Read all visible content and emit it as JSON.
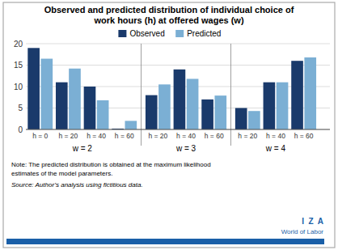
{
  "chart_data": {
    "type": "bar",
    "title": "Observed and predicted distribution of individual choice of\nwork hours (h) at offered wages (w)",
    "groups": [
      {
        "label": "w = 2",
        "categories": [
          "h = 0",
          "h = 20",
          "h = 40",
          "h = 60"
        ]
      },
      {
        "label": "w = 3",
        "categories": [
          "h = 20",
          "h = 40",
          "h = 60"
        ]
      },
      {
        "label": "w = 4",
        "categories": [
          "h = 20",
          "h = 40",
          "h = 60"
        ]
      }
    ],
    "series": [
      {
        "name": "Observed",
        "color": "#1a3a6b",
        "values": [
          19,
          11,
          10,
          0.2,
          8,
          14,
          7,
          5,
          11,
          16
        ]
      },
      {
        "name": "Predicted",
        "color": "#7bafd4",
        "values": [
          16.5,
          14.2,
          6.8,
          2.0,
          10.5,
          11.8,
          7.9,
          4.3,
          11.0,
          16.8
        ]
      }
    ],
    "ylim": [
      0,
      20
    ],
    "yticks": [
      0,
      5,
      10,
      15,
      20
    ],
    "grid": true,
    "legend": "top",
    "notes": [
      "Note: The predicted distribution is obtained at the maximum likelihood",
      "estimates of the model parameters."
    ],
    "source": "Source: Author’s analysis using fictitious data.",
    "logo": [
      "I  Z  A",
      "World of Labor"
    ],
    "logo_color": "#1a5fa8",
    "background_color": "#ffffff",
    "border_color": "#aaaaaa"
  }
}
